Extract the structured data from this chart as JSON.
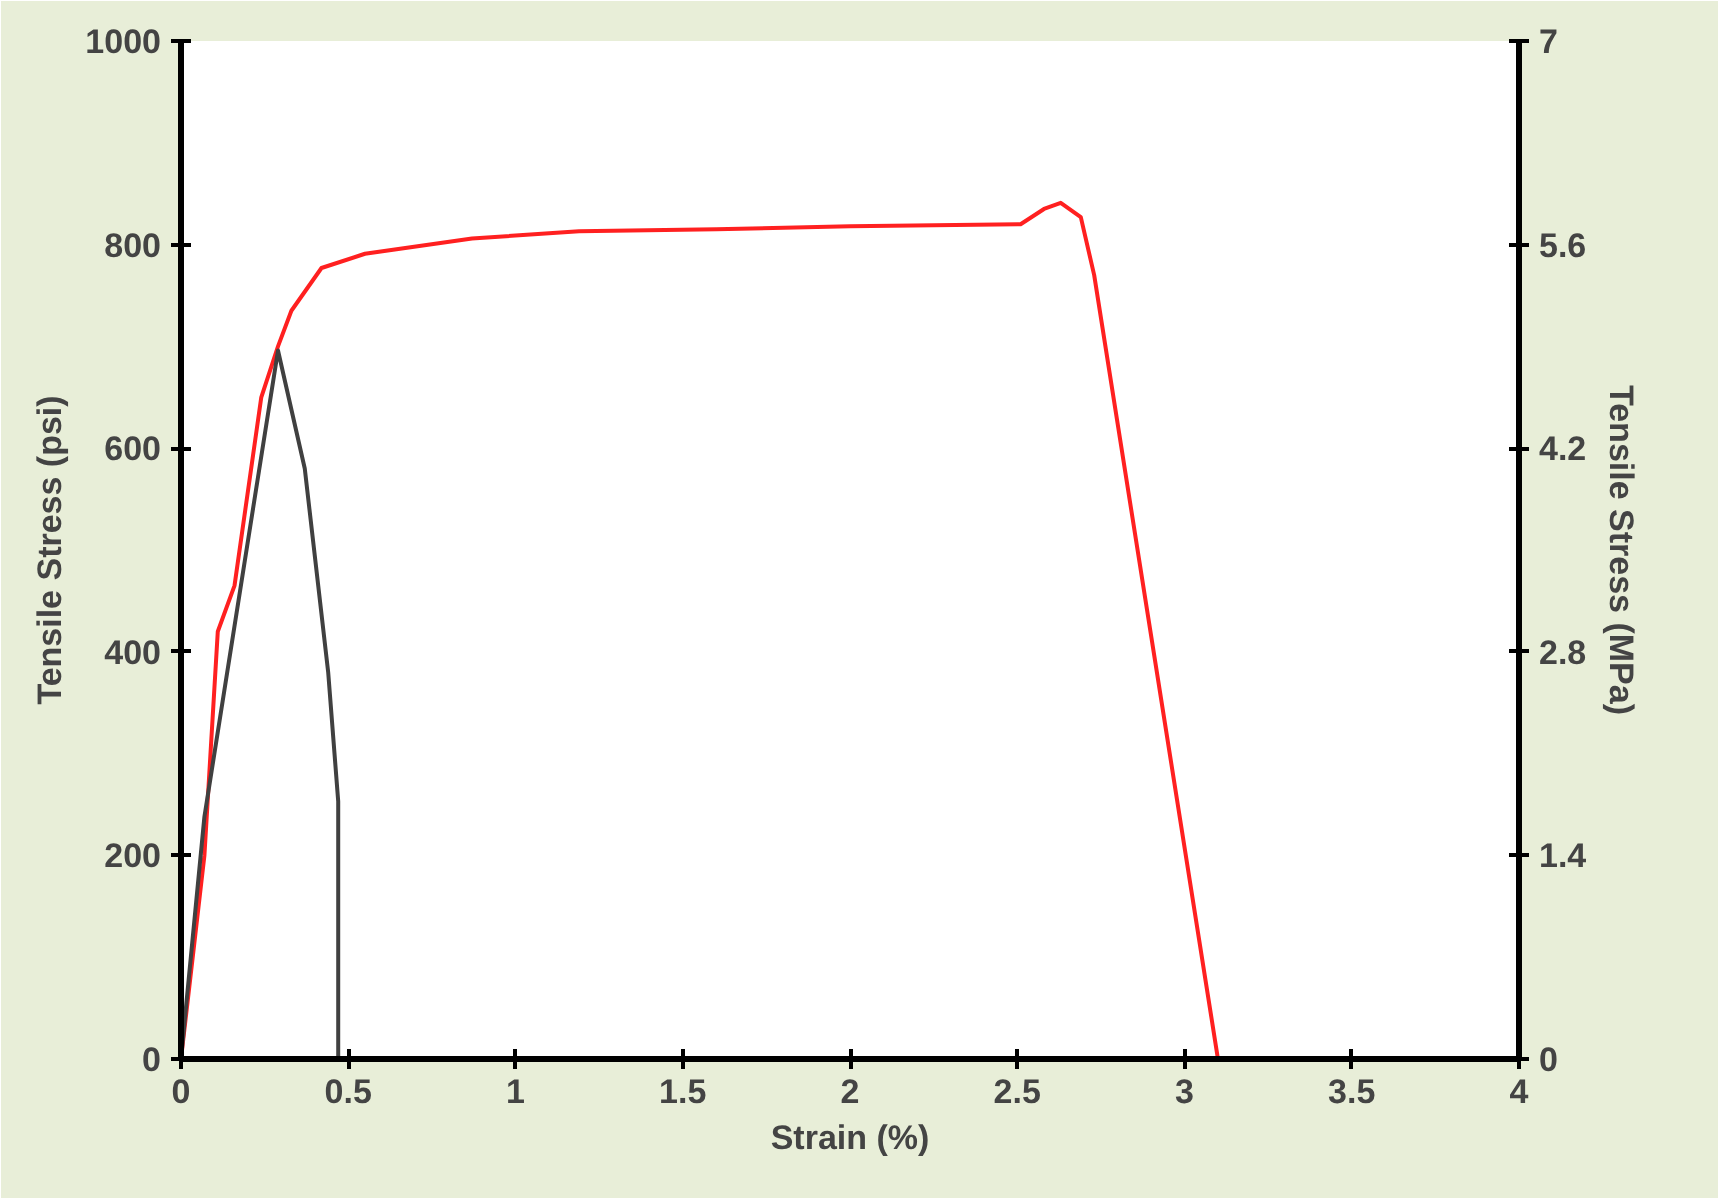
{
  "chart_data": {
    "type": "line",
    "xlabel": "Strain (%)",
    "ylabel": "Tensile Stress (psi)",
    "y2label": "Tensile Stress (MPa)",
    "xlim": [
      0,
      4
    ],
    "xticks": [
      0,
      0.5,
      1,
      1.5,
      2,
      2.5,
      3,
      3.5,
      4
    ],
    "ylim": [
      0,
      1000
    ],
    "yticks": [
      0,
      200,
      400,
      600,
      800,
      1000
    ],
    "y2lim": [
      0,
      7
    ],
    "y2ticks": [
      0,
      1.4,
      2.8,
      4.2,
      5.6,
      7
    ],
    "grid": false,
    "marker": "none",
    "line_style": "solid",
    "series": [
      {
        "color": "#ff2020",
        "x": [
          0,
          0.07,
          0.11,
          0.16,
          0.24,
          0.29,
          0.33,
          0.42,
          0.55,
          0.87,
          1.19,
          1.6,
          2.0,
          2.51,
          2.58,
          2.63,
          2.69,
          2.73,
          3.1
        ],
        "values": [
          0,
          200,
          420,
          465,
          650,
          700,
          735,
          777,
          791,
          806,
          813,
          815,
          818,
          820,
          835,
          841,
          827,
          770,
          0
        ]
      },
      {
        "color": "#404040",
        "x": [
          0,
          0.07,
          0.29,
          0.37,
          0.44,
          0.47,
          0.47
        ],
        "values": [
          0,
          238,
          696,
          580,
          380,
          253,
          0
        ]
      }
    ]
  }
}
